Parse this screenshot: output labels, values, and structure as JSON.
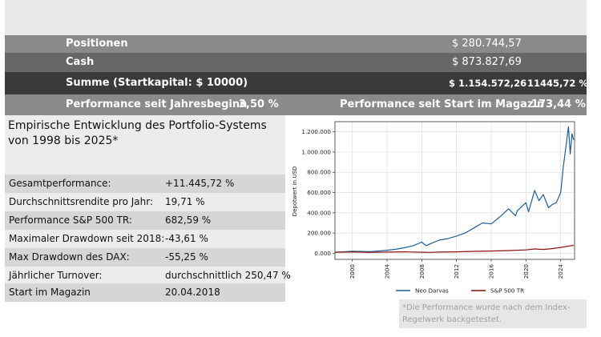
{
  "summary": {
    "positions_label": "Positionen",
    "positions_value": "$ 280.744,57",
    "cash_label": "Cash",
    "cash_value": "$ 873.827,69",
    "sum_label": "Summe (Startkapital: $ 10000)",
    "sum_value": "$ 1.154.572,26",
    "sum_percent": "11445,72 %",
    "perf_ytd_label": "Performance seit Jahresbeginn",
    "perf_ytd_value": "3,50 %",
    "perf_start_label": "Performance seit Start im Magazin",
    "perf_start_value": "173,44 %"
  },
  "stats": {
    "title": "Empirische Entwicklung des Portfolio-Systems von 1998 bis 2025*",
    "rows": [
      {
        "label": "Gesamtperformance:",
        "value": "+11.445,72 %"
      },
      {
        "label": "Durchschnittsrendite pro Jahr:",
        "value": "19,71 %"
      },
      {
        "label": "Performance S&P 500 TR:",
        "value": "682,59 %"
      },
      {
        "label": "Maximaler Drawdown seit 2018:",
        "value": "-43,61 %"
      },
      {
        "label": "Max Drawdown des DAX:",
        "value": "-55,25 %"
      },
      {
        "label": "Jährlicher Turnover:",
        "value": "durchschnittlich 250,47 %"
      },
      {
        "label": "Start im Magazin",
        "value": "20.04.2018"
      }
    ]
  },
  "footnote": "*Die Performance wurde nach dem Index-Regelwerk backgetestet.",
  "chart_data": {
    "type": "line",
    "title": "",
    "xlabel": "",
    "ylabel": "Depotwert in USD",
    "xlim": [
      1998,
      2025.6
    ],
    "ylim": [
      -60000,
      1300000
    ],
    "x_ticks": [
      2000,
      2004,
      2008,
      2012,
      2016,
      2020,
      2024
    ],
    "y_ticks": [
      0,
      200000,
      400000,
      600000,
      800000,
      1000000,
      1200000
    ],
    "y_tick_labels": [
      "0.000",
      "200.000",
      "400.000",
      "600.000",
      "800.000",
      "1.000.000",
      "1.200.000"
    ],
    "grid": true,
    "legend_position": "bottom",
    "series": [
      {
        "name": "Neo Darvas",
        "color": "#1f5f99",
        "x": [
          1998,
          1999,
          2000,
          2001,
          2002,
          2003,
          2004,
          2005,
          2006,
          2007,
          2008,
          2008.5,
          2009,
          2010,
          2011,
          2012,
          2013,
          2014,
          2015,
          2016,
          2017,
          2018,
          2018.8,
          2019,
          2020,
          2020.3,
          2020.8,
          2021,
          2021.5,
          2022,
          2022.6,
          2023,
          2023.5,
          2024,
          2024.3,
          2024.6,
          2024.9,
          2025.1,
          2025.3,
          2025.5
        ],
        "y": [
          10000,
          14000,
          20000,
          18000,
          16000,
          22000,
          30000,
          40000,
          55000,
          75000,
          110000,
          75000,
          95000,
          130000,
          145000,
          170000,
          200000,
          250000,
          300000,
          290000,
          360000,
          440000,
          370000,
          420000,
          500000,
          410000,
          560000,
          620000,
          520000,
          580000,
          450000,
          480000,
          500000,
          600000,
          850000,
          1050000,
          1250000,
          980000,
          1180000,
          1120000
        ]
      },
      {
        "name": "S&P 500 TR",
        "color": "#8b0f0f",
        "x": [
          1998,
          2000,
          2002,
          2004,
          2006,
          2008,
          2009,
          2010,
          2012,
          2014,
          2016,
          2018,
          2020,
          2021,
          2022,
          2023,
          2024,
          2025,
          2025.5
        ],
        "y": [
          10000,
          13000,
          9000,
          12000,
          14000,
          10000,
          9000,
          12000,
          14000,
          19000,
          22000,
          27000,
          33000,
          43000,
          38000,
          46000,
          58000,
          72000,
          78000
        ]
      }
    ]
  }
}
